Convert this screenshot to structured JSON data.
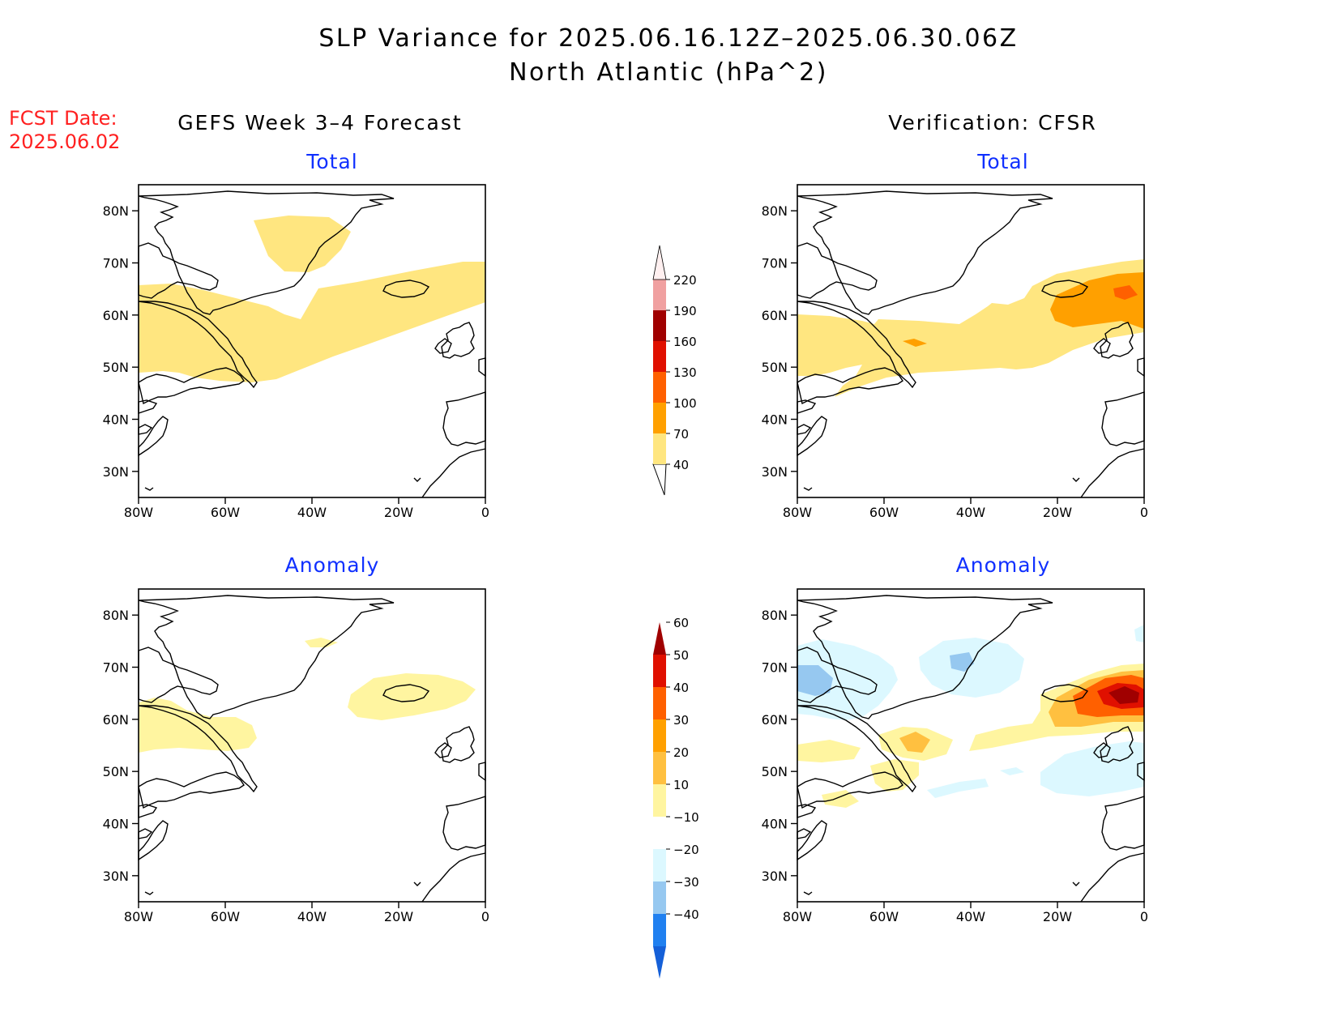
{
  "title": {
    "line1": "SLP Variance for 2025.06.16.12Z–2025.06.30.06Z",
    "line2": "North Atlantic (hPa^2)"
  },
  "fcst_date": {
    "label": "FCST Date:",
    "value": "2025.06.02"
  },
  "columns": {
    "left": "GEFS Week 3–4 Forecast",
    "right": "Verification: CFSR"
  },
  "panels": [
    {
      "subtitle": "Total"
    },
    {
      "subtitle": "Total"
    },
    {
      "subtitle": "Anomaly"
    },
    {
      "subtitle": "Anomaly"
    }
  ],
  "map_axes": {
    "lat_labels": [
      "80N",
      "70N",
      "60N",
      "50N",
      "40N",
      "30N"
    ],
    "lat_values": [
      80,
      70,
      60,
      50,
      40,
      30
    ],
    "lon_labels": [
      "80W",
      "60W",
      "40W",
      "20W",
      "0"
    ],
    "lon_values": [
      -80,
      -60,
      -40,
      -20,
      0
    ],
    "lat_range": [
      25,
      85
    ],
    "lon_range": [
      -80,
      0
    ]
  },
  "colorbars": {
    "total": {
      "levels": [
        "40",
        "70",
        "100",
        "130",
        "160",
        "190",
        "220"
      ],
      "colors": [
        "#ffe680",
        "#ffa000",
        "#ff6000",
        "#e01000",
        "#a00000",
        "#f0a0a0",
        "#fff0f0"
      ]
    },
    "anomaly": {
      "levels": [
        "-40",
        "-30",
        "-20",
        "-10",
        "10",
        "20",
        "30",
        "40",
        "50",
        "60"
      ],
      "colors": [
        "#1560d8",
        "#2080f0",
        "#96c8f0",
        "#dcf8ff",
        "#ffffff",
        "#fff5a0",
        "#ffc040",
        "#ffa000",
        "#ff6000",
        "#e01000",
        "#a00000"
      ]
    }
  }
}
